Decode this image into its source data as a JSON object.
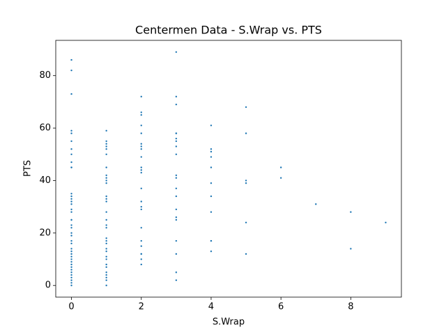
{
  "chart_data": {
    "type": "scatter",
    "title": "Centermen Data - S.Wrap vs. PTS",
    "x_label": "S.Wrap",
    "y_label": "PTS",
    "xlim": [
      -0.45,
      9.45
    ],
    "ylim": [
      -4.45,
      93.45
    ],
    "xticks": [
      0,
      2,
      4,
      6,
      8
    ],
    "yticks": [
      0,
      20,
      40,
      60,
      80
    ],
    "grid": false,
    "series": [
      {
        "color": "#1f77b4",
        "x": [
          0,
          0,
          0,
          0,
          0,
          0,
          0,
          0,
          0,
          0,
          0,
          0,
          0,
          0,
          0,
          0,
          0,
          0,
          0,
          0,
          0,
          0,
          0,
          0,
          0,
          0,
          0,
          0,
          0,
          0,
          0,
          0,
          0,
          0,
          0,
          0,
          0,
          0,
          0,
          0,
          0,
          1,
          1,
          1,
          1,
          1,
          1,
          1,
          1,
          1,
          1,
          1,
          1,
          1,
          1,
          1,
          1,
          1,
          1,
          1,
          1,
          1,
          1,
          1,
          1,
          1,
          1,
          1,
          1,
          1,
          1,
          1,
          1,
          2,
          2,
          2,
          2,
          2,
          2,
          2,
          2,
          2,
          2,
          2,
          2,
          2,
          2,
          2,
          2,
          2,
          2,
          2,
          2,
          2,
          2,
          2,
          3,
          3,
          3,
          3,
          3,
          3,
          3,
          3,
          3,
          3,
          3,
          3,
          3,
          3,
          3,
          3,
          3,
          3,
          3,
          3,
          4,
          4,
          4,
          4,
          4,
          4,
          4,
          4,
          4,
          4,
          4,
          5,
          5,
          5,
          5,
          5,
          5,
          6,
          6,
          7,
          8,
          8,
          9
        ],
        "values": [
          86,
          82,
          73,
          59,
          58,
          55,
          52,
          50,
          47,
          45,
          45,
          35,
          34,
          33,
          32,
          31,
          29,
          28,
          25,
          25,
          23,
          22,
          20,
          19,
          17,
          16,
          14,
          13,
          12,
          11,
          10,
          9,
          8,
          7,
          6,
          5,
          4,
          3,
          2,
          1,
          0,
          59,
          55,
          54,
          53,
          52,
          50,
          45,
          42,
          41,
          40,
          39,
          34,
          33,
          32,
          28,
          25,
          23,
          22,
          18,
          17,
          16,
          14,
          13,
          11,
          10,
          8,
          7,
          5,
          4,
          3,
          2,
          0,
          72,
          66,
          65,
          61,
          58,
          54,
          53,
          52,
          49,
          45,
          44,
          43,
          37,
          32,
          30,
          29,
          22,
          17,
          15,
          12,
          12,
          10,
          8,
          89,
          72,
          69,
          58,
          58,
          56,
          55,
          53,
          50,
          42,
          41,
          37,
          34,
          29,
          26,
          25,
          17,
          12,
          5,
          2,
          61,
          52,
          51,
          49,
          45,
          39,
          34,
          28,
          17,
          17,
          13,
          68,
          58,
          40,
          39,
          24,
          12,
          45,
          41,
          31,
          28,
          14,
          24
        ]
      }
    ]
  }
}
